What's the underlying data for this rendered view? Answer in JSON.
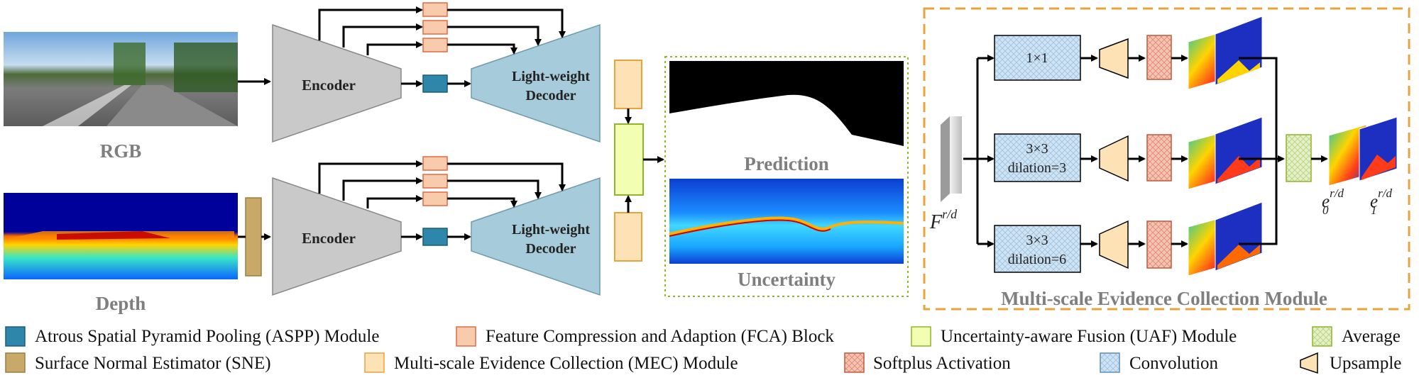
{
  "inputs": {
    "rgb_label": "RGB",
    "depth_label": "Depth"
  },
  "network": {
    "encoder_top": "Encoder",
    "encoder_bottom": "Encoder",
    "decoder_top_line1": "Light-weight",
    "decoder_top_line2": "Decoder",
    "decoder_bottom_line1": "Light-weight",
    "decoder_bottom_line2": "Decoder"
  },
  "outputs": {
    "prediction_label": "Prediction",
    "uncertainty_label": "Uncertainty"
  },
  "mec_module": {
    "title": "Multi-scale Evidence Collection Module",
    "feature_label": "F",
    "feature_sup": "r/d",
    "branches": [
      {
        "line1": "1×1",
        "line2": ""
      },
      {
        "line1": "3×3",
        "line2": "dilation=3"
      },
      {
        "line1": "3×3",
        "line2": "dilation=6"
      }
    ],
    "evidence_0": "e",
    "evidence_0_sub": "0",
    "evidence_0_sup": "r/d",
    "evidence_1": "e",
    "evidence_1_sub": "1",
    "evidence_1_sup": "r/d"
  },
  "legend": [
    {
      "name": "legend-aspp",
      "label": "Atrous Spatial Pyramid Pooling (ASPP) Module",
      "icon": "aspp-swatch"
    },
    {
      "name": "legend-fca",
      "label": "Feature Compression and Adaption (FCA) Block",
      "icon": "fca-swatch"
    },
    {
      "name": "legend-uaf",
      "label": "Uncertainty-aware Fusion (UAF) Module",
      "icon": "uaf-swatch"
    },
    {
      "name": "legend-average",
      "label": "Average",
      "icon": "average-swatch"
    },
    {
      "name": "legend-sne",
      "label": "Surface Normal Estimator (SNE)",
      "icon": "sne-swatch"
    },
    {
      "name": "legend-mec",
      "label": "Multi-scale Evidence Collection (MEC) Module",
      "icon": "mec-swatch"
    },
    {
      "name": "legend-softplus",
      "label": "Softplus Activation",
      "icon": "softplus-swatch"
    },
    {
      "name": "legend-convolution",
      "label": "Convolution",
      "icon": "convolution-swatch"
    },
    {
      "name": "legend-upsample",
      "label": "Upsample",
      "icon": "upsample-swatch"
    }
  ],
  "colors": {
    "aspp": "#2e86ab",
    "fca": "#f8cbad",
    "uaf": "#f2ffb3",
    "sne": "#c8a96a",
    "mec": "#fde2b5",
    "conv": "#cfe3f3",
    "average": "#e4f1c4",
    "encoder": "#c9c9c9",
    "decoder": "#a6cbdb",
    "mec_border": "#e8a33c"
  }
}
